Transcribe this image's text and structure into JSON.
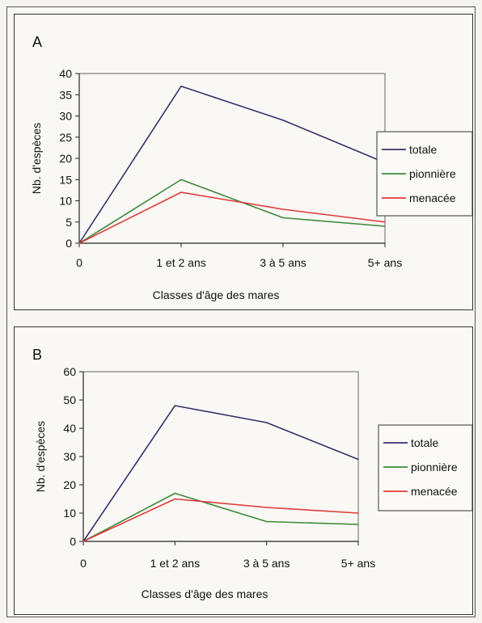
{
  "chart_data": [
    {
      "type": "line",
      "panel_label": "A",
      "categories": [
        "0",
        "1 et 2 ans",
        "3 à 5 ans",
        "5+ ans"
      ],
      "xlabel": "Classes d'âge des mares",
      "ylabel": "Nb. d'espèces",
      "ylim": [
        0,
        40
      ],
      "yticks": [
        0,
        5,
        10,
        15,
        20,
        25,
        30,
        35,
        40
      ],
      "grid": false,
      "legend_position": "right",
      "series": [
        {
          "name": "totale",
          "color": "#3a2f6e",
          "values": [
            0,
            37,
            29,
            19
          ]
        },
        {
          "name": "pionnière",
          "color": "#3d8a3d",
          "values": [
            0,
            15,
            6,
            4
          ]
        },
        {
          "name": "menacée",
          "color": "#e03a3a",
          "values": [
            0,
            12,
            8,
            5
          ]
        }
      ]
    },
    {
      "type": "line",
      "panel_label": "B",
      "categories": [
        "0",
        "1 et 2 ans",
        "3 à 5 ans",
        "5+ ans"
      ],
      "xlabel": "Classes d'âge des mares",
      "ylabel": "Nb. d'espèces",
      "ylim": [
        0,
        60
      ],
      "yticks": [
        0,
        10,
        20,
        30,
        40,
        50,
        60
      ],
      "grid": false,
      "legend_position": "right",
      "series": [
        {
          "name": "totale",
          "color": "#3a2f6e",
          "values": [
            0,
            48,
            42,
            29
          ]
        },
        {
          "name": "pionnière",
          "color": "#3d8a3d",
          "values": [
            0,
            17,
            7,
            6
          ]
        },
        {
          "name": "menacée",
          "color": "#e03a3a",
          "values": [
            0,
            15,
            12,
            10
          ]
        }
      ]
    }
  ]
}
